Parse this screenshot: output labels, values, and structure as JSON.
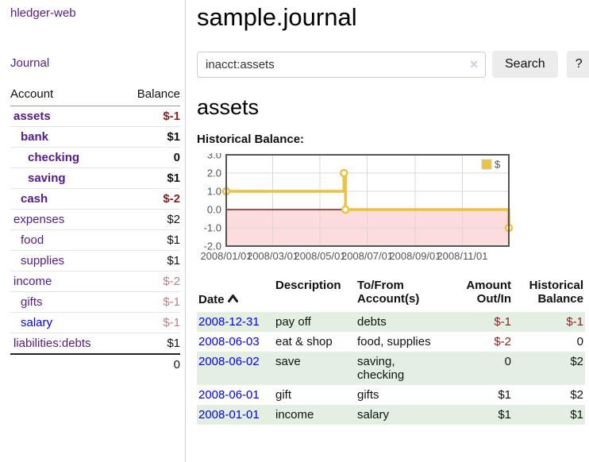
{
  "colors": {
    "link_purple": "#551a8b",
    "link_blue": "#0000ee",
    "negative_strong": "#8f1d1d",
    "negative_soft": "#c08080",
    "row_stripe_green": "#e2efe2",
    "chart_series_gold": "#edc240",
    "chart_negative_fill": "#fcdcdc",
    "chart_zero_line": "#8b1818"
  },
  "sidebar": {
    "app_title": "hledger-web",
    "journal_link": "Journal",
    "accounts": {
      "header_account": "Account",
      "header_balance": "Balance",
      "rows": [
        {
          "name": "assets",
          "level": 1,
          "bold": true,
          "balance": "$-1"
        },
        {
          "name": "bank",
          "level": 2,
          "bold": true,
          "balance": "$1"
        },
        {
          "name": "checking",
          "level": 3,
          "bold": true,
          "balance": "0"
        },
        {
          "name": "saving",
          "level": 3,
          "bold": true,
          "balance": "$1"
        },
        {
          "name": "cash",
          "level": 2,
          "bold": true,
          "balance": "$-2"
        },
        {
          "name": "expenses",
          "level": 1,
          "bold": false,
          "balance": "$2"
        },
        {
          "name": "food",
          "level": 2,
          "bold": false,
          "balance": "$1"
        },
        {
          "name": "supplies",
          "level": 2,
          "bold": false,
          "balance": "$1"
        },
        {
          "name": "income",
          "level": 1,
          "bold": false,
          "balance": "$-2"
        },
        {
          "name": "gifts",
          "level": 2,
          "bold": false,
          "balance": "$-1"
        },
        {
          "name": "salary",
          "level": 2,
          "bold": false,
          "balance": "$-1",
          "blue": true
        },
        {
          "name": "liabilities:debts",
          "level": 1,
          "bold": false,
          "balance": "$1"
        }
      ],
      "total": "0"
    }
  },
  "main": {
    "title": "sample.journal",
    "search": {
      "value": "inacct:assets",
      "clear_icon": "✕",
      "button": "Search",
      "help": "?"
    },
    "account_heading": "assets",
    "chart_title": "Historical Balance:"
  },
  "chart_data": {
    "type": "line",
    "line_style": "steps",
    "title": "Historical Balance:",
    "series": [
      {
        "name": "$",
        "color": "#edc240",
        "points": [
          [
            "2008-01-01",
            1
          ],
          [
            "2008-06-01",
            2
          ],
          [
            "2008-06-03",
            0
          ],
          [
            "2008-12-31",
            -1
          ]
        ]
      }
    ],
    "x_range": [
      "2008-01-01",
      "2008-12-31"
    ],
    "x_ticks": [
      {
        "date": "2008-01-01",
        "label": "2008/01/01"
      },
      {
        "date": "2008-03-01",
        "label": "2008/03/01"
      },
      {
        "date": "2008-05-01",
        "label": "2008/05/01"
      },
      {
        "date": "2008-07-01",
        "label": "2008/07/01"
      },
      {
        "date": "2008-09-01",
        "label": "2008/09/01"
      },
      {
        "date": "2008-11-01",
        "label": "2008/11/01"
      }
    ],
    "y_ticks": [
      {
        "value": 3,
        "label": "3.0"
      },
      {
        "value": 2,
        "label": "2.0"
      },
      {
        "value": 1,
        "label": "1.0"
      },
      {
        "value": 0,
        "label": "0.0"
      },
      {
        "value": -1,
        "label": "-1.0"
      },
      {
        "value": -2,
        "label": "-2.0"
      }
    ],
    "ylim": [
      -2,
      3
    ],
    "grid": true,
    "legend": {
      "position": "top-right",
      "label": "$"
    },
    "negative_region": {
      "below": 0
    }
  },
  "transactions": {
    "sort_column": "Date",
    "sort_direction": "ascending",
    "headers": [
      "Date",
      "Description",
      "To/From\nAccount(s)",
      "Amount\nOut/In",
      "Historical\nBalance"
    ],
    "rows": [
      {
        "date": "2008-12-31",
        "description": "pay off",
        "accounts": "debts",
        "amount": "$-1",
        "balance": "$-1"
      },
      {
        "date": "2008-06-03",
        "description": "eat & shop",
        "accounts": "food, supplies",
        "amount": "$-2",
        "balance": "0"
      },
      {
        "date": "2008-06-02",
        "description": "save",
        "accounts": "saving,\nchecking",
        "amount": "0",
        "balance": "$2"
      },
      {
        "date": "2008-06-01",
        "description": "gift",
        "accounts": "gifts",
        "amount": "$1",
        "balance": "$2"
      },
      {
        "date": "2008-01-01",
        "description": "income",
        "accounts": "salary",
        "amount": "$1",
        "balance": "$1"
      }
    ]
  }
}
